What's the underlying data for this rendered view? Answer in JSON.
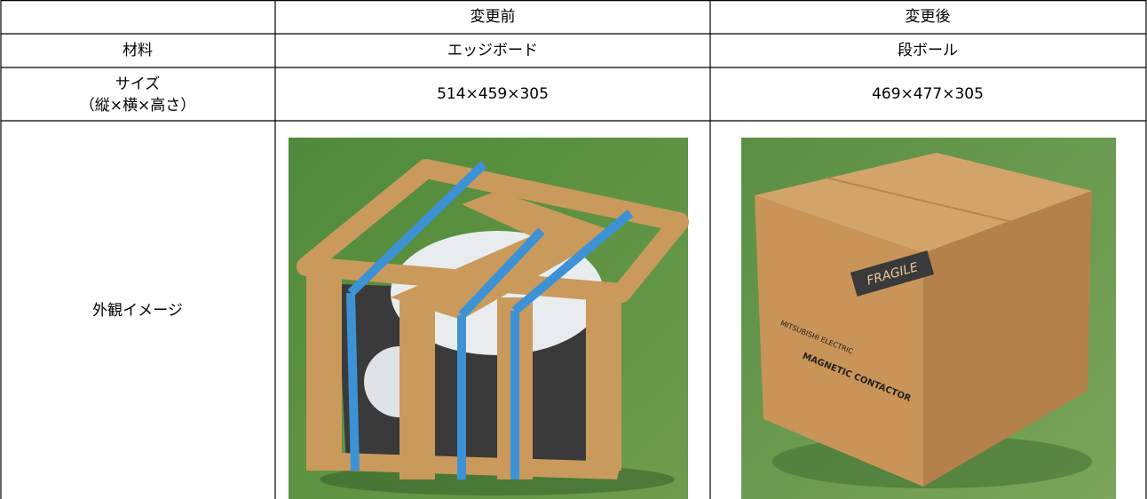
{
  "table": {
    "columns": [
      "変更前",
      "変更後"
    ],
    "rows": [
      {
        "label": "材料",
        "cells": [
          "エッジボード",
          "段ボール"
        ]
      },
      {
        "label_lines": [
          "サイズ",
          "（縦×横×高さ）"
        ],
        "cells": [
          "514×459×305",
          "469×477×305"
        ]
      },
      {
        "label": "外観イメージ"
      }
    ]
  },
  "images": {
    "after": {
      "label": "FRAGILE",
      "brand": "MITSUBISHI ELECTRIC",
      "product": "MAGNETIC CONTACTOR"
    }
  }
}
